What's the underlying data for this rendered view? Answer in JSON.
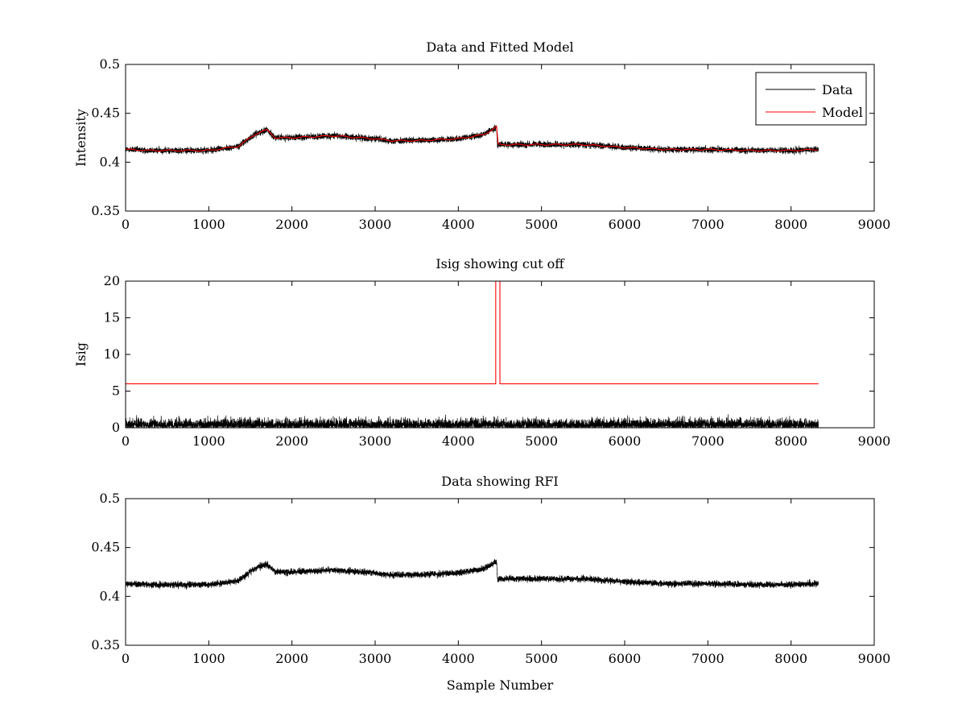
{
  "figure": {
    "background": "#ffffff"
  },
  "chart_data": [
    {
      "type": "line",
      "title": "Data and Fitted Model",
      "xlabel": "",
      "ylabel": "Intensity",
      "xlim": [
        0,
        9000
      ],
      "ylim": [
        0.35,
        0.5
      ],
      "xticks": [
        0,
        1000,
        2000,
        3000,
        4000,
        5000,
        6000,
        7000,
        8000,
        9000
      ],
      "yticks": [
        0.35,
        0.4,
        0.45,
        0.5
      ],
      "ytick_labels": [
        "0.35",
        "0.4",
        "0.45",
        "0.5"
      ],
      "grid": false,
      "legend": {
        "placement": "top-right",
        "entries": [
          "Data",
          "Model"
        ]
      },
      "series": [
        {
          "name": "Data",
          "color": "#000000",
          "style": "noisy",
          "noise_amplitude": 0.004,
          "n_samples": 8330,
          "trend": [
            [
              0,
              0.413
            ],
            [
              300,
              0.412
            ],
            [
              1000,
              0.412
            ],
            [
              1350,
              0.416
            ],
            [
              1550,
              0.428
            ],
            [
              1620,
              0.431
            ],
            [
              1700,
              0.433
            ],
            [
              1800,
              0.425
            ],
            [
              2000,
              0.425
            ],
            [
              2500,
              0.427
            ],
            [
              3000,
              0.424
            ],
            [
              3200,
              0.422
            ],
            [
              3500,
              0.422
            ],
            [
              4000,
              0.424
            ],
            [
              4300,
              0.428
            ],
            [
              4460,
              0.436
            ],
            [
              4470,
              0.418
            ],
            [
              5000,
              0.418
            ],
            [
              5500,
              0.418
            ],
            [
              6000,
              0.415
            ],
            [
              6500,
              0.413
            ],
            [
              7000,
              0.413
            ],
            [
              7500,
              0.412
            ],
            [
              8000,
              0.412
            ],
            [
              8330,
              0.413
            ]
          ]
        },
        {
          "name": "Model",
          "color": "#ff0000",
          "style": "smooth",
          "trend": [
            [
              0,
              0.413
            ],
            [
              300,
              0.412
            ],
            [
              1000,
              0.412
            ],
            [
              1350,
              0.416
            ],
            [
              1550,
              0.428
            ],
            [
              1620,
              0.431
            ],
            [
              1700,
              0.433
            ],
            [
              1800,
              0.425
            ],
            [
              2000,
              0.425
            ],
            [
              2500,
              0.427
            ],
            [
              3000,
              0.424
            ],
            [
              3200,
              0.422
            ],
            [
              3500,
              0.422
            ],
            [
              4000,
              0.424
            ],
            [
              4300,
              0.428
            ],
            [
              4460,
              0.436
            ],
            [
              4470,
              0.418
            ],
            [
              5000,
              0.418
            ],
            [
              5500,
              0.418
            ],
            [
              6000,
              0.415
            ],
            [
              6500,
              0.413
            ],
            [
              7000,
              0.413
            ],
            [
              7500,
              0.412
            ],
            [
              8000,
              0.412
            ],
            [
              8330,
              0.413
            ]
          ]
        }
      ]
    },
    {
      "type": "line",
      "title": "Isig showing cut off",
      "xlabel": "",
      "ylabel": "Isig",
      "xlim": [
        0,
        9000
      ],
      "ylim": [
        0,
        20
      ],
      "xticks": [
        0,
        1000,
        2000,
        3000,
        4000,
        5000,
        6000,
        7000,
        8000,
        9000
      ],
      "yticks": [
        0,
        5,
        10,
        15,
        20
      ],
      "ytick_labels": [
        "0",
        "5",
        "10",
        "15",
        "20"
      ],
      "grid": false,
      "series": [
        {
          "color": "#000000",
          "style": "abs-noise",
          "noise_amplitude": 0.8,
          "n_samples": 8330,
          "trend": [
            [
              0,
              0
            ],
            [
              8330,
              0
            ]
          ]
        },
        {
          "color": "#ff0000",
          "style": "step",
          "points": [
            [
              0,
              6
            ],
            [
              4450,
              6
            ],
            [
              4450,
              20
            ],
            [
              4500,
              20
            ],
            [
              4500,
              6
            ],
            [
              8330,
              6
            ]
          ]
        }
      ]
    },
    {
      "type": "line",
      "title": "Data showing RFI",
      "xlabel": "Sample Number",
      "ylabel": "",
      "xlim": [
        0,
        9000
      ],
      "ylim": [
        0.35,
        0.5
      ],
      "xticks": [
        0,
        1000,
        2000,
        3000,
        4000,
        5000,
        6000,
        7000,
        8000,
        9000
      ],
      "yticks": [
        0.35,
        0.4,
        0.45,
        0.5
      ],
      "ytick_labels": [
        "0.35",
        "0.4",
        "0.45",
        "0.5"
      ],
      "grid": false,
      "series": [
        {
          "color": "#000000",
          "style": "noisy",
          "noise_amplitude": 0.004,
          "n_samples": 8330,
          "trend": [
            [
              0,
              0.413
            ],
            [
              300,
              0.412
            ],
            [
              1000,
              0.412
            ],
            [
              1350,
              0.416
            ],
            [
              1550,
              0.428
            ],
            [
              1620,
              0.431
            ],
            [
              1700,
              0.433
            ],
            [
              1800,
              0.425
            ],
            [
              2000,
              0.425
            ],
            [
              2500,
              0.427
            ],
            [
              3000,
              0.424
            ],
            [
              3200,
              0.422
            ],
            [
              3500,
              0.422
            ],
            [
              4000,
              0.424
            ],
            [
              4300,
              0.428
            ],
            [
              4460,
              0.436
            ],
            [
              4470,
              0.418
            ],
            [
              5000,
              0.418
            ],
            [
              5500,
              0.418
            ],
            [
              6000,
              0.415
            ],
            [
              6500,
              0.413
            ],
            [
              7000,
              0.413
            ],
            [
              7500,
              0.412
            ],
            [
              8000,
              0.412
            ],
            [
              8330,
              0.413
            ]
          ]
        }
      ]
    }
  ]
}
